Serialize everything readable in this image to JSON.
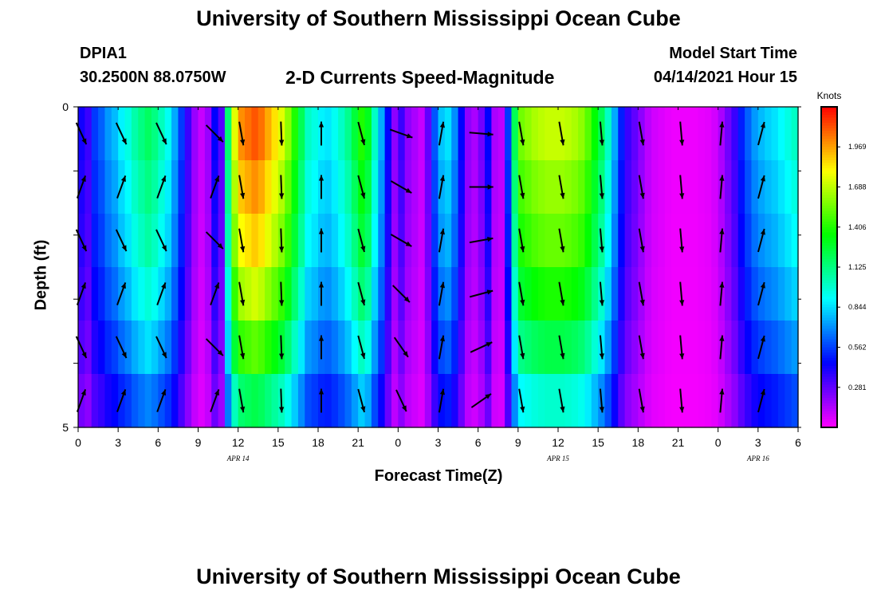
{
  "header": {
    "title_top": "University of Southern Mississippi Ocean Cube",
    "station": "DPIA1",
    "coords": "30.2500N  88.0750W",
    "plot_title": "2-D Currents Speed-Magnitude",
    "model_start_label": "Model Start Time",
    "model_start_value": "04/14/2021 Hour 15"
  },
  "footer": {
    "title_bottom": "University of Southern Mississippi Ocean Cube"
  },
  "chart_data": {
    "type": "heatmap",
    "title": "2-D Currents Speed-Magnitude",
    "xlabel": "Forecast Time(Z)",
    "ylabel": "Depth (ft)",
    "ylim": [
      0,
      5
    ],
    "y_tick_labels": [
      "0",
      "5"
    ],
    "x_tick_labels": [
      "0",
      "3",
      "6",
      "9",
      "12",
      "15",
      "18",
      "21",
      "0",
      "3",
      "6",
      "9",
      "12",
      "15",
      "18",
      "21",
      "0",
      "3",
      "6"
    ],
    "x_range_hours": [
      0,
      54
    ],
    "date_labels": [
      {
        "text": "APR  14",
        "hour": 12
      },
      {
        "text": "APR  15",
        "hour": 36
      },
      {
        "text": "APR  16",
        "hour": 51
      }
    ],
    "colorbar": {
      "title": "Knots",
      "ticks": [
        0.281,
        0.562,
        0.844,
        1.125,
        1.406,
        1.688,
        1.969
      ],
      "range": [
        0.0,
        2.25
      ]
    },
    "hours": [
      0,
      0.5,
      1,
      1.5,
      2,
      2.5,
      3,
      3.5,
      4,
      4.5,
      5,
      5.5,
      6,
      6.5,
      7,
      7.5,
      8,
      8.5,
      9,
      9.5,
      10,
      10.5,
      11,
      11.5,
      12,
      12.5,
      13,
      13.5,
      14,
      14.5,
      15,
      15.5,
      16,
      16.5,
      17,
      17.5,
      18,
      18.5,
      19,
      19.5,
      20,
      20.5,
      21,
      21.5,
      22,
      22.5,
      23,
      23.5,
      24,
      24.5,
      25,
      25.5,
      26,
      26.5,
      27,
      27.5,
      28,
      28.5,
      29,
      29.5,
      30,
      30.5,
      31,
      31.5,
      32,
      32.5,
      33,
      33.5,
      34,
      34.5,
      35,
      35.5,
      36,
      36.5,
      37,
      37.5,
      38,
      38.5,
      39,
      39.5,
      40,
      40.5,
      41,
      41.5,
      42,
      42.5,
      43,
      43.5,
      44,
      44.5,
      45,
      45.5,
      46,
      46.5,
      47,
      47.5,
      48,
      48.5,
      49,
      49.5,
      50,
      50.5,
      51,
      51.5,
      52,
      52.5,
      53,
      53.5
    ],
    "speed_profile_knots": [
      0.42,
      0.35,
      0.55,
      0.62,
      0.72,
      0.78,
      0.88,
      0.95,
      1.05,
      1.12,
      1.18,
      1.12,
      1.02,
      0.92,
      0.75,
      0.55,
      0.35,
      0.18,
      0.1,
      0.18,
      0.45,
      0.3,
      1.15,
      1.75,
      2.0,
      2.05,
      2.1,
      2.05,
      1.95,
      1.85,
      1.75,
      1.6,
      1.4,
      1.2,
      1.0,
      0.95,
      0.88,
      0.86,
      0.92,
      1.0,
      1.1,
      1.25,
      1.4,
      1.3,
      1.0,
      0.75,
      0.45,
      0.2,
      0.35,
      0.2,
      0.15,
      0.1,
      0.28,
      0.6,
      0.8,
      0.85,
      0.7,
      0.45,
      0.2,
      0.15,
      0.25,
      0.45,
      0.15,
      0.12,
      0.55,
      1.2,
      1.55,
      1.6,
      1.65,
      1.68,
      1.7,
      1.7,
      1.7,
      1.68,
      1.65,
      1.6,
      1.5,
      1.35,
      1.2,
      1.0,
      0.75,
      0.5,
      0.35,
      0.28,
      0.2,
      0.12,
      0.08,
      0.06,
      0.04,
      0.03,
      0.03,
      0.03,
      0.03,
      0.04,
      0.05,
      0.08,
      0.15,
      0.25,
      0.35,
      0.5,
      0.62,
      0.72,
      0.78,
      0.82,
      0.85,
      0.9,
      0.95,
      1.0
    ],
    "depth_scale_by_row": [
      1.0,
      0.95,
      0.9,
      0.82,
      0.72,
      0.58
    ],
    "vectors": {
      "hours": [
        0,
        3,
        6,
        10,
        12,
        15,
        18,
        21,
        24,
        27,
        30,
        33,
        36,
        39,
        42,
        45,
        48,
        51
      ],
      "depth_rows": [
        0,
        1,
        2,
        3,
        4,
        5
      ],
      "direction_deg": [
        [
          155,
          155,
          155,
          135,
          170,
          178,
          0,
          165,
          110,
          10,
          95,
          170,
          170,
          175,
          170,
          175,
          5,
          15
        ],
        [
          20,
          20,
          20,
          20,
          170,
          178,
          0,
          165,
          120,
          10,
          90,
          170,
          170,
          175,
          170,
          175,
          5,
          15
        ],
        [
          155,
          155,
          155,
          135,
          170,
          178,
          0,
          165,
          120,
          10,
          80,
          170,
          170,
          175,
          170,
          175,
          5,
          15
        ],
        [
          20,
          20,
          20,
          20,
          170,
          178,
          0,
          165,
          135,
          10,
          75,
          170,
          170,
          175,
          170,
          175,
          5,
          15
        ],
        [
          155,
          155,
          155,
          135,
          170,
          178,
          0,
          165,
          145,
          10,
          65,
          170,
          170,
          175,
          170,
          175,
          5,
          15
        ],
        [
          20,
          20,
          20,
          20,
          170,
          178,
          0,
          165,
          155,
          10,
          55,
          170,
          170,
          175,
          170,
          175,
          5,
          15
        ]
      ]
    }
  }
}
